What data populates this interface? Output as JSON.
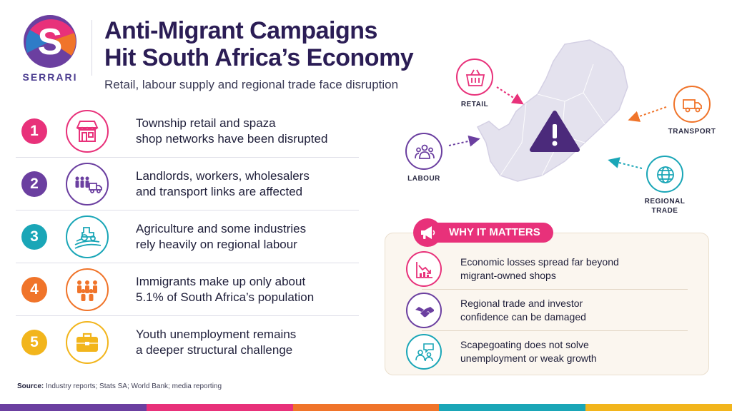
{
  "brand": {
    "name": "SERRARI"
  },
  "header": {
    "title_line1": "Anti-Migrant Campaigns",
    "title_line2": "Hit South Africa’s Economy",
    "subtitle": "Retail, labour supply and regional trade face disruption"
  },
  "list": [
    {
      "num": "1",
      "color": "#e8317a",
      "icon": "storefront-icon",
      "line1": "Township retail and spaza",
      "line2": "shop networks have been disrupted"
    },
    {
      "num": "2",
      "color": "#6b3fa0",
      "icon": "workers-truck-icon",
      "line1": "Landlords, workers, wholesalers",
      "line2": "and transport links are affected"
    },
    {
      "num": "3",
      "color": "#1aa6b7",
      "icon": "tractor-icon",
      "line1": "Agriculture and some industries",
      "line2": "rely heavily on regional labour"
    },
    {
      "num": "4",
      "color": "#f0742a",
      "icon": "people-group-icon",
      "line1": "Immigrants make up only about",
      "line2": "5.1% of South Africa’s population"
    },
    {
      "num": "5",
      "color": "#f2b51c",
      "icon": "briefcase-icon",
      "line1": "Youth unemployment remains",
      "line2": "a deeper structural challenge"
    }
  ],
  "map": {
    "retail": "RETAIL",
    "transport": "TRANSPORT",
    "labour": "LABOUR",
    "regional_line1": "REGIONAL",
    "regional_line2": "TRADE",
    "colors": {
      "retail": "#e8317a",
      "transport": "#f0742a",
      "labour": "#6b3fa0",
      "regional": "#1aa6b7",
      "map_fill": "#e4e2ee",
      "warning": "#4b2a7b"
    }
  },
  "why": {
    "heading": "WHY IT MATTERS",
    "items": [
      {
        "icon": "declining-chart-icon",
        "line1": "Economic losses spread far beyond",
        "line2": "migrant-owned shops"
      },
      {
        "icon": "handshake-icon",
        "line1": "Regional trade and investor",
        "line2": "confidence can be damaged"
      },
      {
        "icon": "chat-people-icon",
        "line1": "Scapegoating does not solve",
        "line2": "unemployment or weak growth"
      }
    ]
  },
  "footer": {
    "source_label": "Source:",
    "source_text": "Industry reports; Stats SA; World Bank; media reporting",
    "bar_colors": [
      "#6b3fa0",
      "#e8317a",
      "#f0742a",
      "#1aa6b7",
      "#f2b51c"
    ]
  }
}
